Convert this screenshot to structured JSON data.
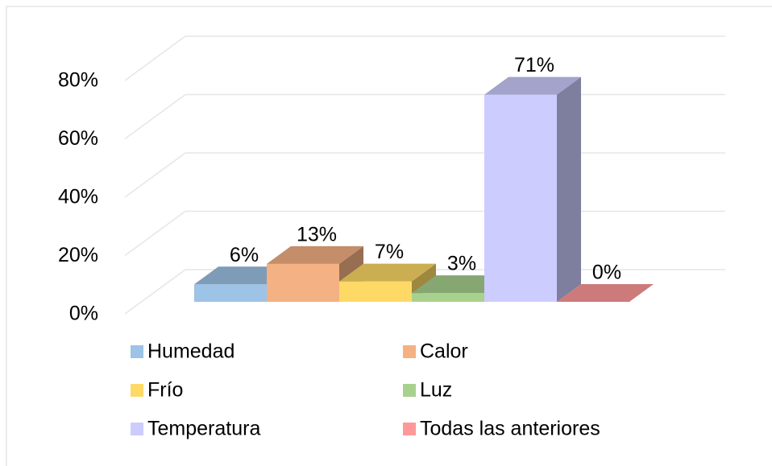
{
  "chart_data": {
    "type": "bar3d",
    "categories": [
      "Humedad",
      "Calor",
      "Frío",
      "Luz",
      "Temperatura",
      "Todas las anteriores"
    ],
    "values": [
      6,
      13,
      7,
      3,
      71,
      0
    ],
    "value_labels": [
      "6%",
      "13%",
      "7%",
      "3%",
      "71%",
      "0%"
    ],
    "colors": [
      "#9dc3e6",
      "#f4b183",
      "#ffd966",
      "#a9d18e",
      "#ccccff",
      "#ff9999"
    ],
    "ylim": [
      0,
      80
    ],
    "yticks": [
      {
        "value": 0,
        "label": "0%"
      },
      {
        "value": 20,
        "label": "20%"
      },
      {
        "value": 40,
        "label": "40%"
      },
      {
        "value": 60,
        "label": "60%"
      },
      {
        "value": 80,
        "label": "80%"
      }
    ],
    "grid": true
  }
}
